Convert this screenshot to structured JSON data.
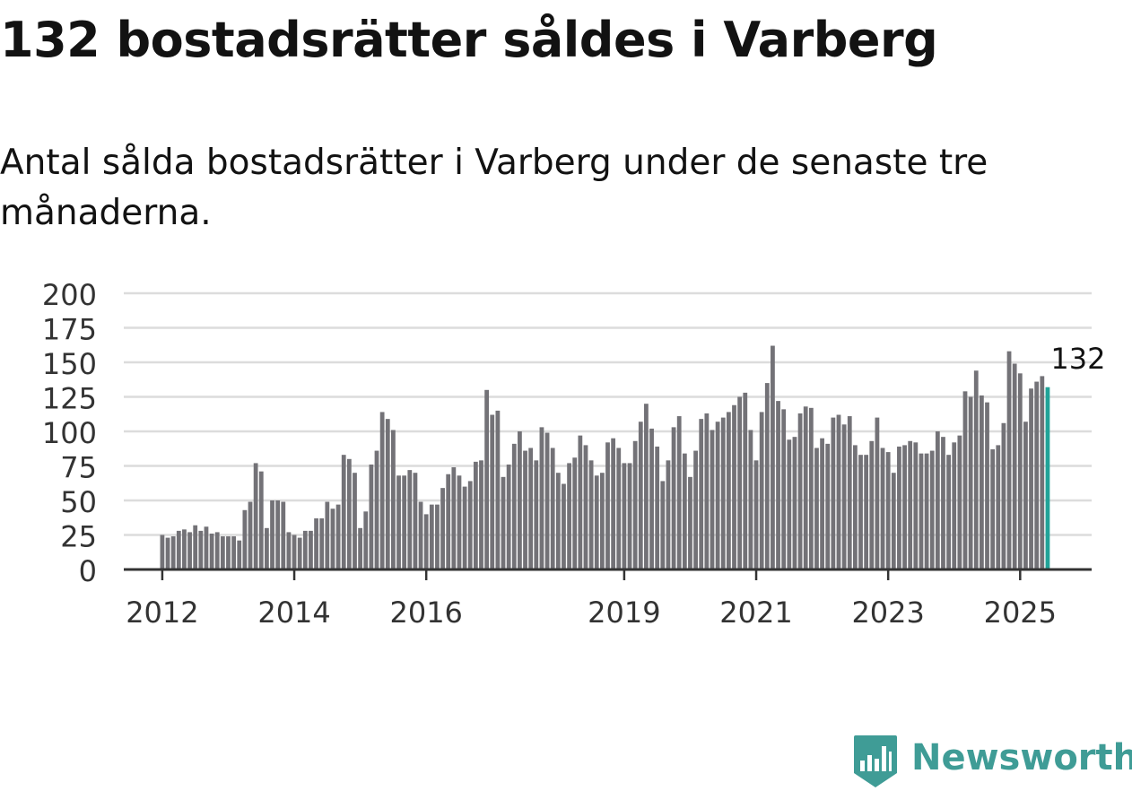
{
  "header": {
    "title": "132 bostadsrätter såldes i Varberg",
    "subtitle": "Antal sålda bostadsrätter i Varberg under de senaste tre månaderna."
  },
  "brand": {
    "name": "Newsworthy",
    "color": "#3f9c96",
    "icon": "bar-chart-badge-icon"
  },
  "colors": {
    "bar": "#737277",
    "highlight": "#21a398",
    "grid": "#dcdcdc",
    "axis": "#333333"
  },
  "chart_data": {
    "type": "bar",
    "title": "",
    "xlabel": "",
    "ylabel": "",
    "ylim": [
      0,
      200
    ],
    "yticks": [
      0,
      25,
      50,
      75,
      100,
      125,
      150,
      175,
      200
    ],
    "xlim": [
      "2011-06",
      "2026-02"
    ],
    "x_tick_labels": [
      {
        "label": "2012",
        "date": "2012-01"
      },
      {
        "label": "2014",
        "date": "2014-01"
      },
      {
        "label": "2016",
        "date": "2016-01"
      },
      {
        "label": "2019",
        "date": "2019-01"
      },
      {
        "label": "2021",
        "date": "2021-01"
      },
      {
        "label": "2023",
        "date": "2023-01"
      },
      {
        "label": "2025",
        "date": "2025-01"
      }
    ],
    "grid": true,
    "legend": "none",
    "start_month": "2012-01",
    "values": [
      25,
      23,
      24,
      28,
      29,
      27,
      32,
      28,
      31,
      26,
      27,
      24,
      24,
      24,
      21,
      43,
      49,
      77,
      71,
      30,
      50,
      50,
      49,
      27,
      25,
      23,
      28,
      28,
      37,
      37,
      49,
      44,
      47,
      83,
      80,
      70,
      30,
      42,
      76,
      86,
      114,
      109,
      101,
      68,
      68,
      72,
      70,
      49,
      40,
      47,
      47,
      59,
      69,
      74,
      68,
      60,
      64,
      78,
      79,
      130,
      112,
      115,
      67,
      76,
      91,
      100,
      86,
      88,
      79,
      103,
      99,
      88,
      70,
      62,
      77,
      81,
      97,
      90,
      79,
      68,
      70,
      92,
      95,
      88,
      77,
      77,
      93,
      107,
      120,
      102,
      89,
      64,
      79,
      103,
      111,
      84,
      67,
      86,
      109,
      113,
      101,
      107,
      110,
      114,
      119,
      125,
      128,
      101,
      79,
      114,
      135,
      162,
      122,
      116,
      94,
      96,
      113,
      118,
      117,
      88,
      95,
      91,
      110,
      112,
      105,
      111,
      90,
      83,
      83,
      93,
      110,
      88,
      85,
      70,
      89,
      90,
      93,
      92,
      84,
      84,
      86,
      100,
      96,
      83,
      92,
      97,
      129,
      125,
      144,
      126,
      121,
      87,
      90,
      106,
      158,
      149,
      142,
      107,
      131,
      136,
      140,
      132
    ],
    "highlight_label": "132"
  }
}
